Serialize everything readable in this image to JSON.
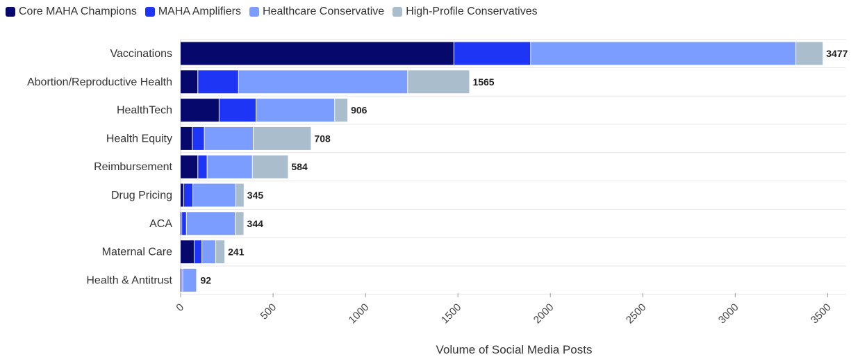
{
  "chart_data": {
    "type": "bar",
    "orientation": "horizontal",
    "stacked": true,
    "categories": [
      "Vaccinations",
      "Abortion/Reproductive Health",
      "HealthTech",
      "Health Equity",
      "Reimbursement",
      "Drug Pricing",
      "ACA",
      "Maternal Care",
      "Health & Antitrust"
    ],
    "series": [
      {
        "name": "Core MAHA Champions",
        "color": "#06096b",
        "values": [
          1480,
          95,
          210,
          65,
          95,
          18,
          8,
          75,
          8
        ]
      },
      {
        "name": "MAHA Amplifiers",
        "color": "#1f35f5",
        "values": [
          415,
          220,
          200,
          65,
          50,
          50,
          25,
          42,
          5
        ]
      },
      {
        "name": "Healthcare Conservative",
        "color": "#7b9dff",
        "values": [
          1435,
          915,
          425,
          265,
          245,
          232,
          265,
          75,
          75
        ]
      },
      {
        "name": "High-Profile Conservatives",
        "color": "#a9bdcc",
        "values": [
          147,
          335,
          71,
          313,
          194,
          45,
          46,
          49,
          4
        ]
      }
    ],
    "totals": [
      "3477",
      "1565",
      "906",
      "708",
      "584",
      "345",
      "344",
      "241",
      "92"
    ],
    "xlabel": "Volume of Social Media Posts",
    "ylabel": "",
    "xlim": [
      0,
      3600
    ],
    "xticks": [
      "0",
      "500",
      "1000",
      "1500",
      "2000",
      "2500",
      "3000",
      "3500"
    ],
    "grid": true,
    "legend_position": "top-left"
  }
}
